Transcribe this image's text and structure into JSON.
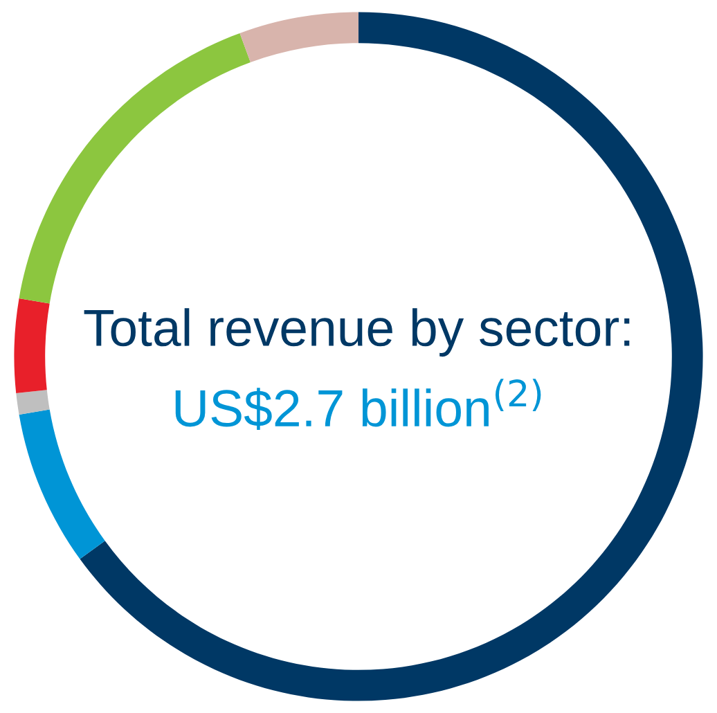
{
  "chart_data": {
    "type": "donut",
    "title": "Total revenue by sector:",
    "subtitle": "US$2.7 billion$^{(2)}$",
    "categories": [
      null,
      null,
      null,
      null,
      null,
      null
    ],
    "values": [
      65,
      7.3,
      1,
      4.4,
      16.7,
      5.6
    ],
    "colors": [
      "#003865",
      "#0095d6",
      "#bfbfbf",
      "#e8202a",
      "#8cc63f",
      "#d8b4ac"
    ],
    "legend": false
  }
}
